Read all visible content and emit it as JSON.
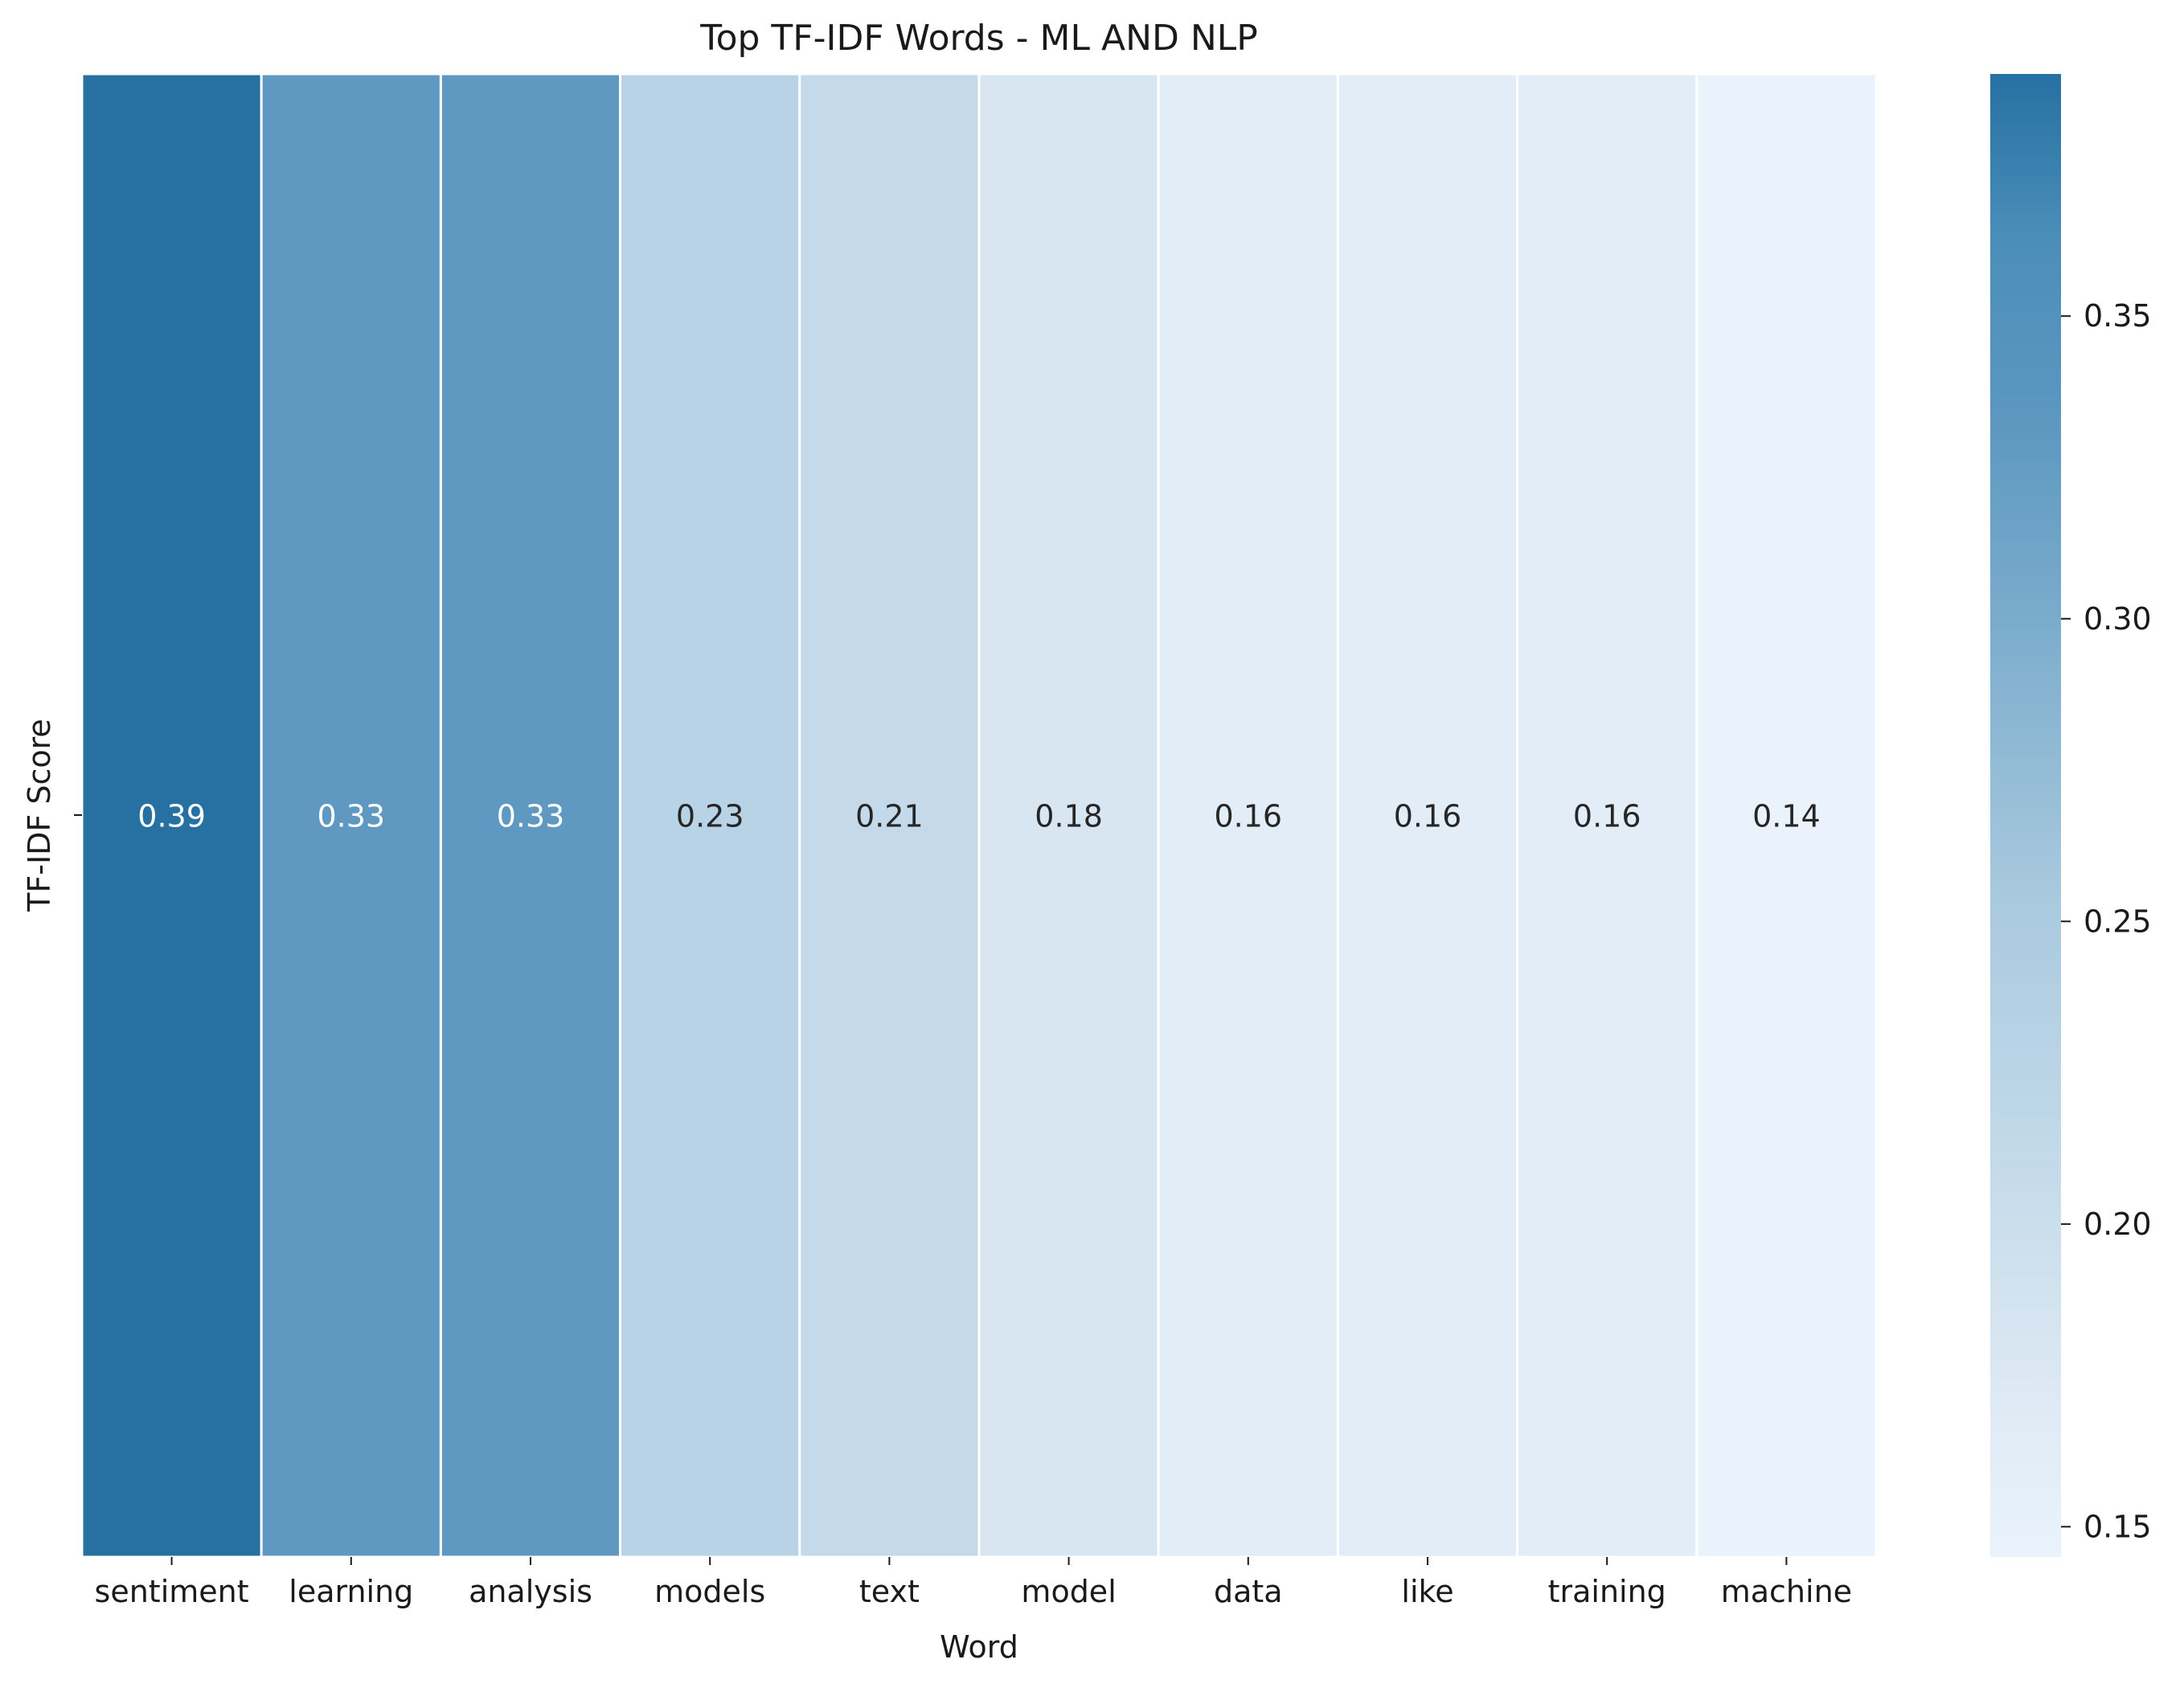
{
  "chart_data": {
    "type": "heatmap",
    "title": "Top TF-IDF Words - ML AND NLP",
    "xlabel": "Word",
    "ylabel": "TF-IDF Score",
    "categories": [
      "sentiment",
      "learning",
      "analysis",
      "models",
      "text",
      "model",
      "data",
      "like",
      "training",
      "machine"
    ],
    "values": [
      0.39,
      0.33,
      0.33,
      0.23,
      0.21,
      0.18,
      0.16,
      0.16,
      0.16,
      0.14
    ],
    "value_labels": [
      "0.39",
      "0.33",
      "0.33",
      "0.23",
      "0.21",
      "0.18",
      "0.16",
      "0.16",
      "0.16",
      "0.14"
    ],
    "colorbar": {
      "vmin": 0.145,
      "vmax": 0.39,
      "ticks": [
        0.15,
        0.2,
        0.25,
        0.3,
        0.35
      ],
      "tick_labels": [
        "0.15",
        "0.20",
        "0.25",
        "0.30",
        "0.35"
      ],
      "colors": [
        "#eaf3fb",
        "#dde9f4",
        "#cbdeec",
        "#b9d4e6",
        "#a9c9df",
        "#8db8d3",
        "#73a6c9",
        "#5a96bf",
        "#4b8eb9",
        "#2670a2"
      ]
    },
    "grid": false,
    "legend": "colorbar-right"
  }
}
